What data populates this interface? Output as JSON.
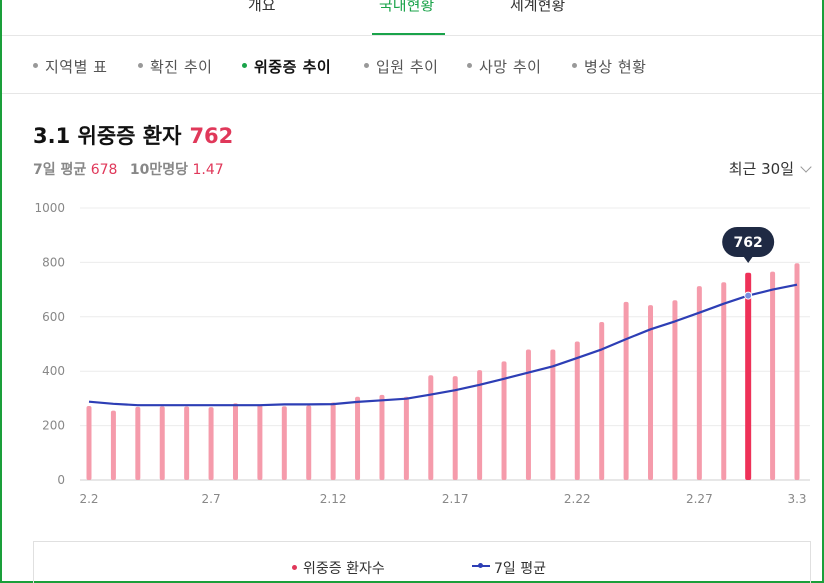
{
  "tabs": [
    {
      "label": "개요"
    },
    {
      "label": "국내현황"
    },
    {
      "label": "세계현황"
    }
  ],
  "sub_nav": [
    {
      "label": "지역별 표"
    },
    {
      "label": "확진 추이"
    },
    {
      "label": "위중증 추이"
    },
    {
      "label": "입원 추이"
    },
    {
      "label": "사망 추이"
    },
    {
      "label": "병상 현황"
    }
  ],
  "header": {
    "title": "3.1 위중증 환자",
    "title_value": "762",
    "avg_label": "7일 평균",
    "avg_value": "678",
    "per100k_label": "10만명당",
    "per100k_value": "1.47",
    "period": "최근 30일"
  },
  "colors": {
    "accent_green": "#1aa34a",
    "bar": "#f59bab",
    "bar_highlight": "#ee3158",
    "line": "#2d3eb5",
    "tooltip_bg": "#1f2a44"
  },
  "chart_data": {
    "type": "bar",
    "title": "",
    "xlabel": "",
    "ylabel": "",
    "ylim": [
      0,
      1000
    ],
    "yticks": [
      0,
      200,
      400,
      600,
      800,
      1000
    ],
    "x_tick_labels": [
      "2.2",
      "2.7",
      "2.12",
      "2.17",
      "2.22",
      "2.27",
      "3.3"
    ],
    "x_tick_indices": [
      0,
      5,
      10,
      15,
      20,
      25,
      29
    ],
    "categories": [
      "2.2",
      "2.3",
      "2.4",
      "2.5",
      "2.6",
      "2.7",
      "2.8",
      "2.9",
      "2.10",
      "2.11",
      "2.12",
      "2.13",
      "2.14",
      "2.15",
      "2.16",
      "2.17",
      "2.18",
      "2.19",
      "2.20",
      "2.21",
      "2.22",
      "2.23",
      "2.24",
      "2.25",
      "2.26",
      "2.27",
      "2.28",
      "3.1",
      "3.2",
      "3.3"
    ],
    "series": [
      {
        "name": "위중증 환자수",
        "type": "bar",
        "values": [
          272,
          255,
          269,
          271,
          270,
          268,
          282,
          277,
          271,
          274,
          285,
          306,
          313,
          306,
          385,
          382,
          404,
          436,
          480,
          480,
          509,
          581,
          655,
          643,
          661,
          713,
          727,
          762,
          766,
          797
        ]
      },
      {
        "name": "7일 평균",
        "type": "line",
        "values": [
          288,
          280,
          275,
          275,
          275,
          275,
          275,
          275,
          278,
          278,
          279,
          287,
          293,
          299,
          314,
          330,
          350,
          372,
          395,
          418,
          449,
          480,
          518,
          554,
          583,
          615,
          648,
          678,
          700,
          718
        ]
      }
    ],
    "highlight": {
      "index": 27,
      "label": "762"
    },
    "grid": true,
    "legend": "bottom-center"
  }
}
